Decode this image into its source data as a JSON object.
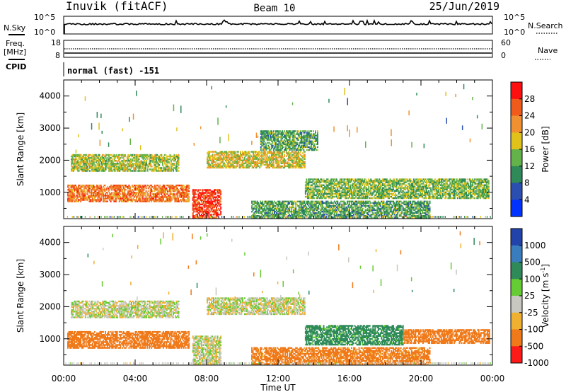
{
  "header": {
    "radar": "Inuvik (fitACF)",
    "beam": "Beam 10",
    "date": "25/Jun/2019"
  },
  "nsky_panel": {
    "left_label": "N.Sky",
    "right_label": "N.Search",
    "right_ticks": [
      "10^5",
      "10^0"
    ],
    "left_ticks": [
      "10^5",
      "10^0"
    ]
  },
  "freq_panel": {
    "left_label_1": "Freq.",
    "left_label_2": "[MHz]",
    "right_label": "Nave",
    "left_ticks": [
      "18",
      "8"
    ],
    "right_ticks": [
      "60",
      "0"
    ]
  },
  "cpid": {
    "label": "CPID",
    "value": "normal (fast) -151"
  },
  "chart_data": [
    {
      "type": "heatmap",
      "title": "",
      "xlabel": "Time UT",
      "ylabel": "Slant Range [km]",
      "xlim": [
        0,
        24
      ],
      "ylim": [
        180,
        4500
      ],
      "x_ticks": [
        "00:00",
        "04:00",
        "08:00",
        "12:00",
        "16:00",
        "20:00",
        "00:00"
      ],
      "y_ticks": [
        "1000",
        "2000",
        "3000",
        "4000"
      ],
      "colorbar": {
        "label": "Power [dB]",
        "ticks": [
          "28",
          "24",
          "20",
          "16",
          "12",
          "8",
          "4"
        ],
        "levels": [
          4,
          8,
          12,
          16,
          20,
          24,
          28
        ],
        "colors": [
          "#0033ff",
          "#2a4fb0",
          "#2f8a5a",
          "#63b24a",
          "#e0c21a",
          "#f09030",
          "#f05a1a",
          "#ff1010"
        ]
      },
      "bands": [
        {
          "t0": 0.2,
          "t1": 7.0,
          "r0": 700,
          "r1": 1200,
          "level": 24
        },
        {
          "t0": 0.4,
          "t1": 6.4,
          "r0": 1650,
          "r1": 2150,
          "level": 16
        },
        {
          "t0": 8.0,
          "t1": 13.5,
          "r0": 1750,
          "r1": 2250,
          "level": 18
        },
        {
          "t0": 13.5,
          "t1": 23.8,
          "r0": 800,
          "r1": 1400,
          "level": 14
        },
        {
          "t0": 7.2,
          "t1": 8.8,
          "r0": 200,
          "r1": 1100,
          "level": 28
        },
        {
          "t0": 10.5,
          "t1": 20.5,
          "r0": 200,
          "r1": 700,
          "level": 12
        },
        {
          "t0": 11.0,
          "t1": 14.2,
          "r0": 2300,
          "r1": 2900,
          "level": 12
        }
      ]
    },
    {
      "type": "heatmap",
      "title": "",
      "xlabel": "Time UT",
      "ylabel": "Slant Range [km]",
      "xlim": [
        0,
        24
      ],
      "ylim": [
        180,
        4500
      ],
      "x_ticks": [
        "00:00",
        "04:00",
        "08:00",
        "12:00",
        "16:00",
        "20:00",
        "00:00"
      ],
      "y_ticks": [
        "1000",
        "2000",
        "3000",
        "4000"
      ],
      "colorbar": {
        "label": "Velocity [m s^-1]",
        "ticks": [
          "1000",
          "500",
          "100",
          "25",
          "-25",
          "-100",
          "-500",
          "-1000"
        ],
        "levels": [
          1000,
          500,
          100,
          25,
          -25,
          -100,
          -500,
          -1000
        ],
        "colors": [
          "#2244aa",
          "#3a7dbf",
          "#2f8a5a",
          "#66cc33",
          "#c8c8c0",
          "#f0b030",
          "#f07a1a",
          "#ff1a1a"
        ]
      },
      "bands": [
        {
          "t0": 0.4,
          "t1": 6.4,
          "r0": 1650,
          "r1": 2150,
          "level": 0
        },
        {
          "t0": 8.0,
          "t1": 13.5,
          "r0": 1750,
          "r1": 2250,
          "level": 0
        },
        {
          "t0": 0.2,
          "t1": 7.0,
          "r0": 700,
          "r1": 1200,
          "level": -200
        },
        {
          "t0": 13.5,
          "t1": 19.0,
          "r0": 800,
          "r1": 1400,
          "level": 150
        },
        {
          "t0": 19.0,
          "t1": 23.8,
          "r0": 850,
          "r1": 1300,
          "level": -200
        },
        {
          "t0": 10.5,
          "t1": 20.5,
          "r0": 200,
          "r1": 700,
          "level": -150
        },
        {
          "t0": 7.2,
          "t1": 8.8,
          "r0": 200,
          "r1": 1100,
          "level": 0
        }
      ]
    }
  ],
  "colors": {
    "line": "#000000",
    "background": "#ffffff"
  }
}
